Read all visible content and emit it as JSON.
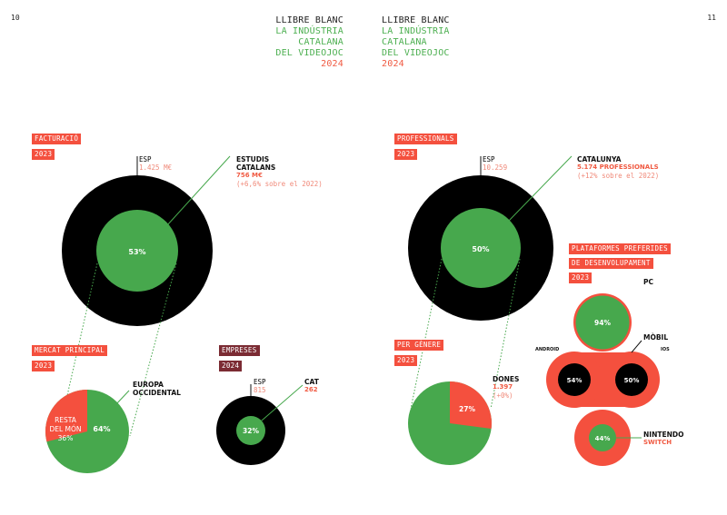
{
  "pages": {
    "left": "10",
    "right": "11"
  },
  "header": {
    "left": {
      "line1": "LLIBRE BLANC",
      "line2": "LA INDÚSTRIA",
      "line3": "CATALANA",
      "line4": "DEL VIDEOJOC",
      "line5": "2024"
    },
    "right": {
      "line1": "LLIBRE BLANC",
      "line2": "LA INDÚSTRIA",
      "line3": "CATALANA",
      "line4": "DEL VIDEOJOC",
      "line5": "2024"
    }
  },
  "facturacio": {
    "tag1": "FACTURACIÓ",
    "tag2": "2023",
    "esp_label": "ESP",
    "esp_value": "1.425 M€",
    "cat_title1": "ESTUDIS",
    "cat_title2": "CATALANS",
    "cat_value": "756 M€",
    "cat_note": "(+6,6% sobre el 2022)",
    "pct": "53%"
  },
  "mercat": {
    "tag1": "MERCAT PRINCIPAL",
    "tag2": "2023",
    "europa1": "EUROPA",
    "europa2": "OCCIDENTAL",
    "europa_pct": "64%",
    "resta1": "RESTA",
    "resta2": "DEL MÓN",
    "resta_pct": "36%"
  },
  "empreses": {
    "tag1": "EMPRESES",
    "tag2": "2024",
    "esp_label": "ESP",
    "esp_value": "815",
    "cat_label": "CAT",
    "cat_value": "262",
    "pct": "32%"
  },
  "professionals": {
    "tag1": "PROFESSIONALS",
    "tag2": "2023",
    "esp_label": "ESP",
    "esp_value": "10.259",
    "cat_title": "CATALUNYA",
    "cat_value": "5.174 PROFESSIONALS",
    "cat_note": "(+12% sobre el 2022)",
    "pct": "50%"
  },
  "genere": {
    "tag1": "PER GÈNERE",
    "tag2": "2023",
    "dones_label": "DONES",
    "dones_value": "1.397",
    "dones_note": "(+0%)",
    "dones_pct": "27%"
  },
  "plataformes": {
    "tag1": "PLATAFORMES PREFERIDES",
    "tag2": "DE DESENVOLUPAMENT",
    "tag3": "2023",
    "pc_label": "PC",
    "pc_pct": "94%",
    "mobil_label": "MÒBIL",
    "android_label": "ANDROID",
    "android_pct": "54%",
    "ios_label": "IOS",
    "ios_pct": "50%",
    "nintendo1": "NINTENDO",
    "nintendo2": "SWITCH",
    "nintendo_pct": "44%"
  },
  "colors": {
    "black": "#000000",
    "green": "#47a84d",
    "red": "#f4503e",
    "darkred": "#7b2b33"
  }
}
